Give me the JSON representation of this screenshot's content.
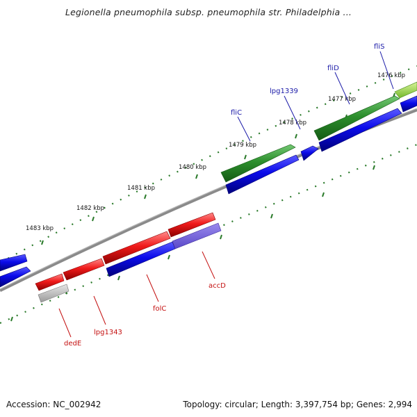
{
  "header": {
    "title": "Legionella pneumophila subsp. pneumophila str. Philadelphia ..."
  },
  "footer": {
    "accession": "Accession: NC_002942",
    "summary": "Topology: circular; Length: 3,397,754 bp; Genes: 2,994"
  },
  "colors": {
    "forward_cds": "#2a8a2a",
    "forward_gene": "#0a0ae0",
    "reverse_cds": "#e21818",
    "reverse_gene": "#0a0ae0",
    "backbone": "#8a8a8a",
    "tick": "#2a7a2a",
    "label_forward": "#1a1aa8",
    "label_reverse": "#c41010"
  },
  "ticks": [
    {
      "label": "1476 kbp"
    },
    {
      "label": "1477 kbp"
    },
    {
      "label": "1478 kbp"
    },
    {
      "label": "1479 kbp"
    },
    {
      "label": "1480 kbp"
    },
    {
      "label": "1481 kbp"
    },
    {
      "label": "1482 kbp"
    },
    {
      "label": "1483 kbp"
    }
  ],
  "genes_forward": [
    {
      "name": "fliS"
    },
    {
      "name": "fliD"
    },
    {
      "name": "lpg1339"
    },
    {
      "name": "fliC"
    }
  ],
  "genes_reverse": [
    {
      "name": "accD"
    },
    {
      "name": "folC"
    },
    {
      "name": "lpg1343"
    },
    {
      "name": "dedE"
    }
  ]
}
